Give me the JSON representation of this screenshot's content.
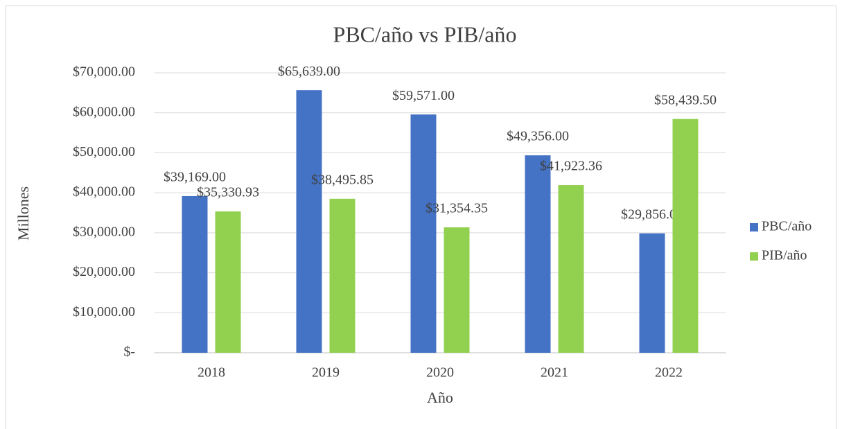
{
  "chart_data": {
    "type": "bar",
    "title": "PBC/año vs PIB/año",
    "x_label": "Año",
    "y_label": "Millones",
    "categories": [
      "2018",
      "2019",
      "2020",
      "2021",
      "2022"
    ],
    "series": [
      {
        "name": "PBC/año",
        "color": "#4472c4",
        "values": [
          39169.0,
          65639.0,
          59571.0,
          49356.0,
          29856.0
        ],
        "value_labels": [
          "$39,169.00",
          "$65,639.00",
          "$59,571.00",
          "$49,356.00",
          "$29,856.00"
        ]
      },
      {
        "name": "PIB/año",
        "color": "#92d050",
        "values": [
          35330.93,
          38495.85,
          31354.35,
          41923.36,
          58439.5
        ],
        "value_labels": [
          "$35,330.93",
          "$38,495.85",
          "$31,354.35",
          "$41,923.36",
          "$58,439.50"
        ]
      }
    ],
    "ylim": [
      0,
      70000
    ],
    "yticks": [
      {
        "value": 0,
        "label": "$-"
      },
      {
        "value": 10000,
        "label": "$10,000.00"
      },
      {
        "value": 20000,
        "label": "$20,000.00"
      },
      {
        "value": 30000,
        "label": "$30,000.00"
      },
      {
        "value": 40000,
        "label": "$40,000.00"
      },
      {
        "value": 50000,
        "label": "$50,000.00"
      },
      {
        "value": 60000,
        "label": "$60,000.00"
      },
      {
        "value": 70000,
        "label": "$70,000.00"
      }
    ],
    "grid": true,
    "legend": "right"
  }
}
